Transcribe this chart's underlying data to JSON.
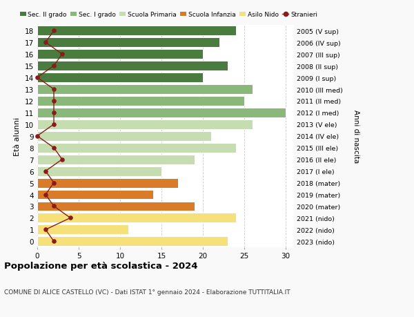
{
  "ages": [
    18,
    17,
    16,
    15,
    14,
    13,
    12,
    11,
    10,
    9,
    8,
    7,
    6,
    5,
    4,
    3,
    2,
    1,
    0
  ],
  "years": [
    "2005 (V sup)",
    "2006 (IV sup)",
    "2007 (III sup)",
    "2008 (II sup)",
    "2009 (I sup)",
    "2010 (III med)",
    "2011 (II med)",
    "2012 (I med)",
    "2013 (V ele)",
    "2014 (IV ele)",
    "2015 (III ele)",
    "2016 (II ele)",
    "2017 (I ele)",
    "2018 (mater)",
    "2019 (mater)",
    "2020 (mater)",
    "2021 (nido)",
    "2022 (nido)",
    "2023 (nido)"
  ],
  "bar_values": [
    24,
    22,
    20,
    23,
    20,
    26,
    25,
    30,
    26,
    21,
    24,
    19,
    15,
    17,
    14,
    19,
    24,
    11,
    23
  ],
  "bar_colors": [
    "#4a7c3f",
    "#4a7c3f",
    "#4a7c3f",
    "#4a7c3f",
    "#4a7c3f",
    "#8ab87a",
    "#8ab87a",
    "#8ab87a",
    "#c5ddb0",
    "#c5ddb0",
    "#c5ddb0",
    "#c5ddb0",
    "#c5ddb0",
    "#d97c2a",
    "#d97c2a",
    "#d97c2a",
    "#f5e07a",
    "#f5e07a",
    "#f5e07a"
  ],
  "stranieri_values": [
    2,
    1,
    3,
    2,
    0,
    2,
    2,
    2,
    2,
    0,
    2,
    3,
    1,
    2,
    1,
    2,
    4,
    1,
    2
  ],
  "legend_labels": [
    "Sec. II grado",
    "Sec. I grado",
    "Scuola Primaria",
    "Scuola Infanzia",
    "Asilo Nido",
    "Stranieri"
  ],
  "legend_colors": [
    "#4a7c3f",
    "#8ab87a",
    "#c5ddb0",
    "#d97c2a",
    "#f5e07a",
    "#8b1a1a"
  ],
  "title": "Popolazione per età scolastica - 2024",
  "subtitle": "COMUNE DI ALICE CASTELLO (VC) - Dati ISTAT 1° gennaio 2024 - Elaborazione TUTTITALIA.IT",
  "ylabel_left": "Età alunni",
  "ylabel_right": "Anni di nascita",
  "xlim": [
    0,
    31
  ],
  "bg_color": "#f9f9f9",
  "bar_bg_color": "#ffffff"
}
